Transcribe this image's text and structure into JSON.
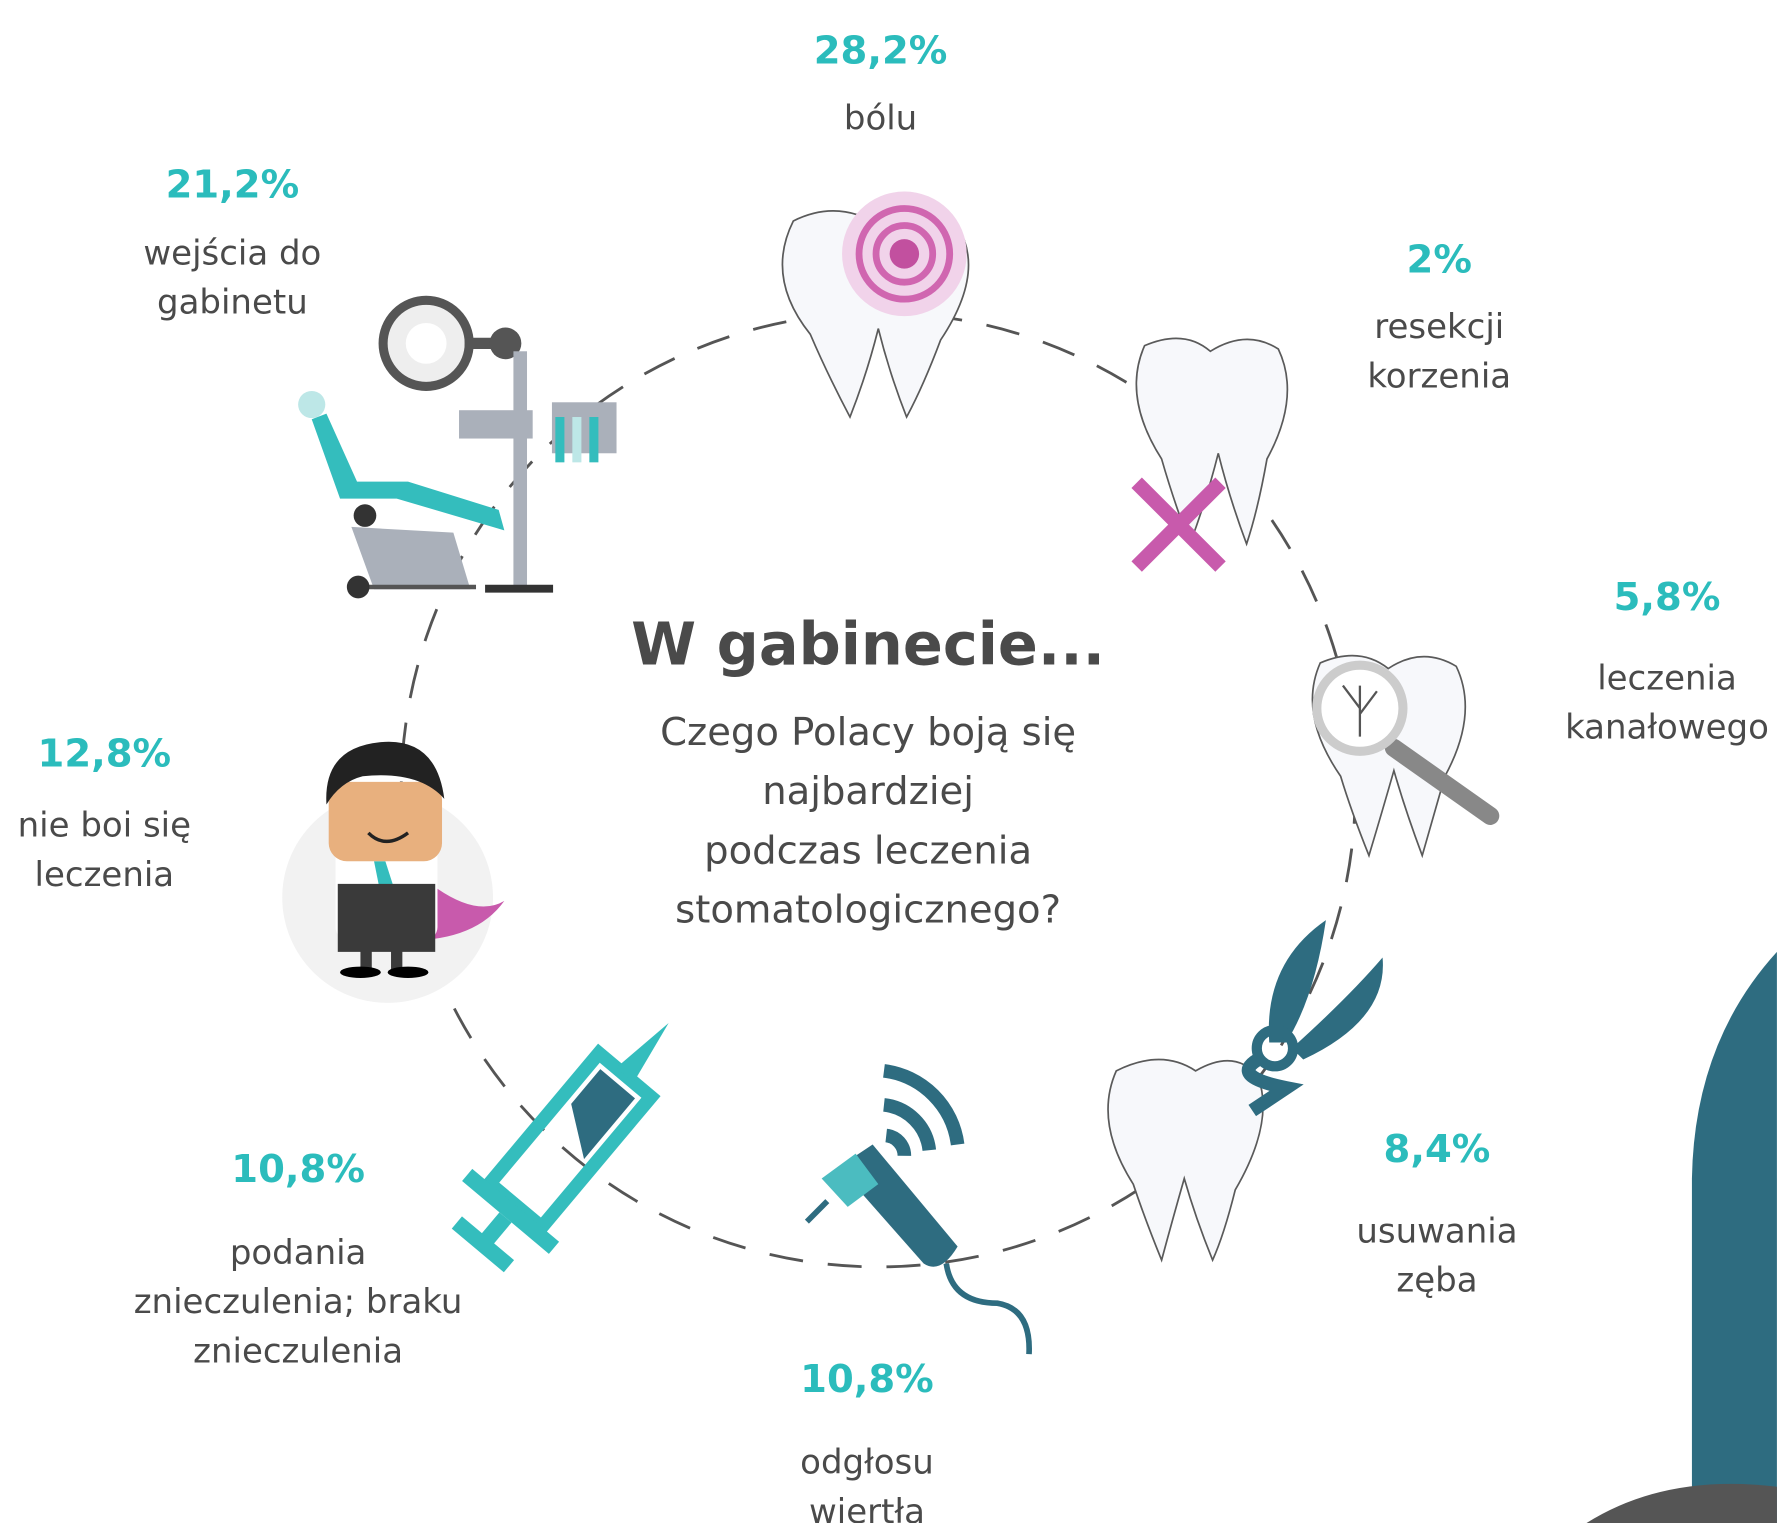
{
  "title": "W gabinecie...",
  "subtitle": [
    "Czego Polacy boją się",
    "najbardziej",
    "podczas leczenia",
    "stomatologicznego?"
  ],
  "items": [
    {
      "percent": "28,2%",
      "label": [
        "bólu"
      ]
    },
    {
      "percent": "21,2%",
      "label": [
        "wejścia do",
        "gabinetu"
      ]
    },
    {
      "percent": "2%",
      "label": [
        "resekcji",
        "korzenia"
      ]
    },
    {
      "percent": "5,8%",
      "label": [
        "leczenia",
        "kanałowego"
      ]
    },
    {
      "percent": "12,8%",
      "label": [
        "nie boi się",
        "leczenia"
      ]
    },
    {
      "percent": "10,8%",
      "label": [
        "podania",
        "znieczulenia; braku",
        "znieczulenia"
      ]
    },
    {
      "percent": "10,8%",
      "label": [
        "odgłosu",
        "wiertła"
      ]
    },
    {
      "percent": "8,4%",
      "label": [
        "usuwania",
        "zęba"
      ]
    }
  ]
}
